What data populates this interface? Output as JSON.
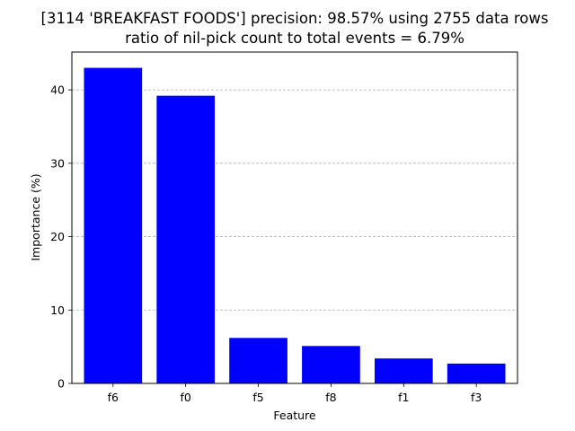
{
  "chart_data": {
    "type": "bar",
    "title": "[3114 'BREAKFAST FOODS'] precision: 98.57% using 2755 data rows",
    "subtitle": "ratio of nil-pick count to total events = 6.79%",
    "xlabel": "Feature",
    "ylabel": "Importance (%)",
    "categories": [
      "f6",
      "f0",
      "f5",
      "f8",
      "f1",
      "f3"
    ],
    "values": [
      43.0,
      39.2,
      6.2,
      5.1,
      3.4,
      2.7
    ],
    "ylim": [
      0,
      45.15
    ],
    "yticks": [
      0,
      10,
      20,
      30,
      40
    ],
    "bar_color": "#0000ff",
    "grid": "y-dashed"
  }
}
